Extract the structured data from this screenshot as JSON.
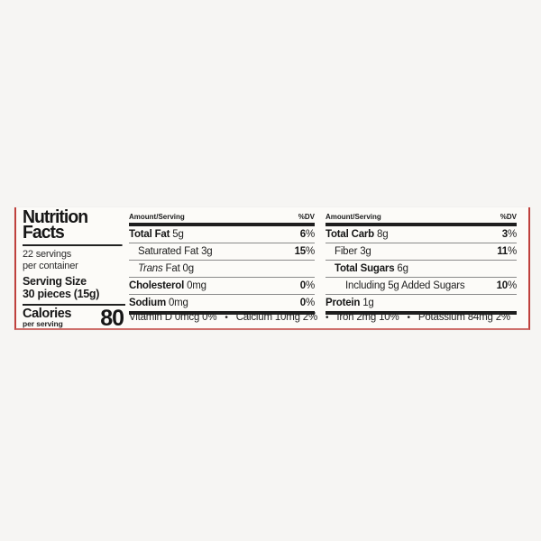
{
  "colors": {
    "page_background": "#f6f5f3",
    "card_background": "#fcfbf8",
    "package_edge_red": "#bf413d",
    "rule_black": "#1e1e1e",
    "hairline_gray": "#8a8a8a"
  },
  "label": {
    "title_line1": "Nutrition",
    "title_line2": "Facts",
    "servings_count_line": "22 servings",
    "servings_container_line": "per container",
    "serving_size_label": "Serving Size",
    "serving_size_value": "30 pieces (15g)",
    "calories_label": "Calories",
    "calories_sublabel": "per serving",
    "calories_value": "80",
    "columns_header": {
      "amount": "Amount/Serving",
      "dv": "%DV"
    },
    "cols": [
      {
        "rows": [
          {
            "name": "Total Fat",
            "amount": "5g",
            "dv_num": "6",
            "dv_pct": "%"
          },
          {
            "name": "Saturated Fat",
            "amount": "3g",
            "dv_num": "15",
            "dv_pct": "%"
          },
          {
            "name": "Trans",
            "amount": "Fat 0g",
            "dv_num": "",
            "dv_pct": ""
          },
          {
            "name": "Cholesterol",
            "amount": "0mg",
            "dv_num": "0",
            "dv_pct": "%"
          },
          {
            "name": "Sodium",
            "amount": "0mg",
            "dv_num": "0",
            "dv_pct": "%"
          }
        ]
      },
      {
        "rows": [
          {
            "name": "Total Carb",
            "amount": "8g",
            "dv_num": "3",
            "dv_pct": "%"
          },
          {
            "name": "Fiber",
            "amount": "3g",
            "dv_num": "11",
            "dv_pct": "%"
          },
          {
            "name": "Total Sugars",
            "amount": "6g",
            "dv_num": "",
            "dv_pct": ""
          },
          {
            "name": "Including 5g Added Sugars",
            "amount": "",
            "dv_num": "10",
            "dv_pct": "%"
          },
          {
            "name": "Protein",
            "amount": "1g",
            "dv_num": "",
            "dv_pct": ""
          }
        ]
      }
    ],
    "micronutrients": [
      "Vitamin D 0mcg 0%",
      "Calcium 10mg 2%",
      "Iron 2mg 10%",
      "Potassium 84mg 2%"
    ],
    "bullet": "•"
  }
}
